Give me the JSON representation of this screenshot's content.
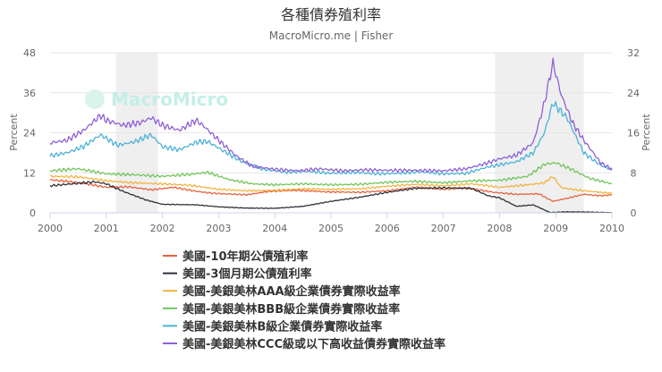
{
  "chart_data": {
    "type": "line",
    "title": "各種債券殖利率",
    "subtitle": "MacroMicro.me | Fisher",
    "watermark": "MacroMicro",
    "xlabel": "",
    "ylabel_left": "Percent",
    "ylabel_right": "Percent",
    "xlim": [
      2000,
      2010
    ],
    "ylim_left": [
      0,
      48
    ],
    "ylim_right": [
      0,
      32
    ],
    "x_ticks": [
      "2000",
      "2001",
      "2002",
      "2003",
      "2004",
      "2005",
      "2006",
      "2007",
      "2008",
      "2009",
      "2010"
    ],
    "y_ticks_left": [
      "0",
      "12",
      "24",
      "36",
      "48"
    ],
    "y_ticks_right": [
      "0",
      "8",
      "16",
      "24",
      "32"
    ],
    "grid": true,
    "legend_position": "bottom",
    "recession_bands": [
      [
        2001.17,
        2001.92
      ],
      [
        2007.92,
        2009.5
      ]
    ],
    "series": [
      {
        "name": "美國-10年期公債殖利率",
        "color": "#e8603c",
        "axis": "right",
        "x": [
          2000.0,
          2000.3,
          2000.6,
          2001.0,
          2001.4,
          2001.8,
          2002.2,
          2002.6,
          2002.9,
          2003.5,
          2003.9,
          2004.4,
          2004.9,
          2005.5,
          2006.0,
          2006.5,
          2007.0,
          2007.4,
          2007.9,
          2008.3,
          2008.7,
          2008.95,
          2009.2,
          2009.5,
          2009.8,
          2010.0
        ],
        "y": [
          6.6,
          6.3,
          5.9,
          5.1,
          5.2,
          4.6,
          5.1,
          4.3,
          3.9,
          3.6,
          4.3,
          4.5,
          4.2,
          4.1,
          4.4,
          5.1,
          4.7,
          5.0,
          4.1,
          3.7,
          3.8,
          2.3,
          2.9,
          3.7,
          3.4,
          3.6
        ]
      },
      {
        "name": "美國-3個月期公債殖利率",
        "color": "#2f2f3a",
        "axis": "right",
        "x": [
          2000.0,
          2000.4,
          2000.8,
          2001.0,
          2001.3,
          2001.7,
          2002.0,
          2002.6,
          2003.0,
          2003.5,
          2004.0,
          2004.5,
          2005.0,
          2005.5,
          2006.0,
          2006.5,
          2007.0,
          2007.5,
          2007.8,
          2008.0,
          2008.3,
          2008.6,
          2008.9,
          2009.2,
          2009.6,
          2010.0
        ],
        "y": [
          5.4,
          5.8,
          6.2,
          5.8,
          4.3,
          2.6,
          1.7,
          1.6,
          1.2,
          0.95,
          0.9,
          1.3,
          2.3,
          3.1,
          4.1,
          4.9,
          5.0,
          4.9,
          3.4,
          3.0,
          1.3,
          1.6,
          0.05,
          0.2,
          0.15,
          0.05
        ]
      },
      {
        "name": "美國-美銀美林AAA級企業債券實際收益率",
        "color": "#f2b33d",
        "axis": "right",
        "x": [
          2000.0,
          2000.5,
          2001.0,
          2001.5,
          2002.0,
          2002.5,
          2003.0,
          2003.5,
          2004.0,
          2004.5,
          2005.0,
          2005.5,
          2006.0,
          2006.5,
          2007.0,
          2007.5,
          2008.0,
          2008.5,
          2008.8,
          2008.95,
          2009.1,
          2009.3,
          2009.5,
          2010.0
        ],
        "y": [
          7.3,
          7.2,
          6.4,
          6.0,
          5.8,
          5.5,
          4.7,
          4.4,
          4.5,
          4.8,
          4.7,
          4.8,
          5.3,
          5.7,
          5.4,
          5.8,
          5.1,
          5.6,
          6.0,
          7.3,
          5.0,
          4.7,
          4.4,
          3.9
        ]
      },
      {
        "name": "美國-美銀美林BBB級企業債券實際收益率",
        "color": "#70c45a",
        "axis": "right",
        "x": [
          2000.0,
          2000.5,
          2001.0,
          2001.5,
          2002.0,
          2002.5,
          2002.8,
          2003.2,
          2003.6,
          2004.0,
          2004.5,
          2005.0,
          2005.5,
          2006.0,
          2006.5,
          2007.0,
          2007.5,
          2008.0,
          2008.5,
          2008.8,
          2009.0,
          2009.3,
          2009.6,
          2010.0
        ],
        "y": [
          8.4,
          8.8,
          7.8,
          7.6,
          7.3,
          7.7,
          8.1,
          6.6,
          5.8,
          5.6,
          5.8,
          5.6,
          5.7,
          6.1,
          6.3,
          6.0,
          6.4,
          6.5,
          7.3,
          9.7,
          10.0,
          8.6,
          6.9,
          5.8
        ]
      },
      {
        "name": "美國-美銀美林B級企業債券實際收益率",
        "color": "#4bb1d8",
        "axis": "right",
        "x": [
          2000.0,
          2000.3,
          2000.6,
          2000.9,
          2001.2,
          2001.5,
          2001.8,
          2002.0,
          2002.3,
          2002.6,
          2002.8,
          2003.1,
          2003.4,
          2003.8,
          2004.2,
          2004.6,
          2005.0,
          2005.4,
          2005.8,
          2006.2,
          2006.6,
          2007.0,
          2007.4,
          2007.8,
          2008.0,
          2008.3,
          2008.6,
          2008.8,
          2008.95,
          2009.2,
          2009.5,
          2009.8,
          2010.0
        ],
        "y": [
          11.4,
          12.0,
          13.3,
          15.6,
          13.5,
          14.2,
          15.6,
          13.2,
          12.6,
          14.1,
          14.3,
          12.3,
          10.3,
          8.7,
          8.1,
          8.3,
          7.9,
          8.1,
          7.8,
          7.9,
          8.2,
          7.8,
          7.9,
          9.2,
          9.6,
          10.2,
          12.0,
          16.0,
          22.0,
          19.0,
          12.0,
          9.5,
          8.6
        ]
      },
      {
        "name": "美國-美銀美林CCC級或以下高收益債券實際收益率",
        "color": "#8e5fd6",
        "axis": "right",
        "x": [
          2000.0,
          2000.3,
          2000.6,
          2000.9,
          2001.0,
          2001.3,
          2001.6,
          2001.8,
          2002.0,
          2002.3,
          2002.6,
          2002.75,
          2003.0,
          2003.3,
          2003.6,
          2004.0,
          2004.4,
          2004.8,
          2005.2,
          2005.6,
          2006.0,
          2006.5,
          2007.0,
          2007.4,
          2007.8,
          2008.0,
          2008.3,
          2008.6,
          2008.8,
          2008.95,
          2009.1,
          2009.3,
          2009.5,
          2009.8,
          2010.0
        ],
        "y": [
          14.0,
          14.5,
          16.5,
          19.5,
          18.5,
          17.5,
          18.0,
          19.0,
          17.5,
          16.5,
          18.5,
          17.2,
          14.5,
          11.5,
          9.3,
          8.7,
          8.4,
          8.8,
          8.4,
          8.6,
          8.5,
          8.5,
          8.4,
          8.8,
          10.0,
          10.8,
          11.5,
          14.0,
          22.0,
          30.0,
          23.5,
          18.0,
          14.5,
          10.0,
          8.7
        ]
      }
    ]
  }
}
